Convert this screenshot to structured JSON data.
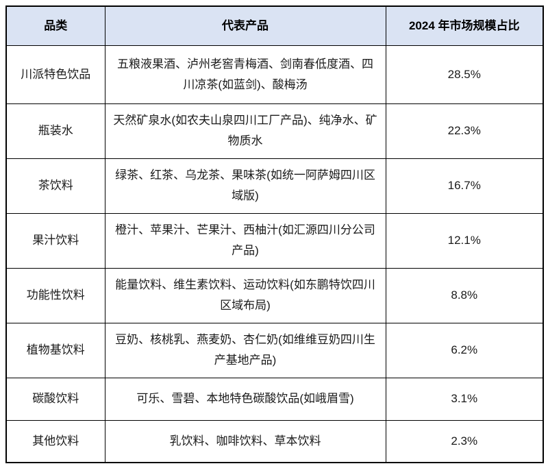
{
  "table": {
    "headers": {
      "category": "品类",
      "products": "代表产品",
      "share": "2024 年市场规模占比"
    },
    "rows": [
      {
        "category": "川派特色饮品",
        "products": "五粮液果酒、泸州老窖青梅酒、剑南春低度酒、四川凉茶(如蓝剑)、酸梅汤",
        "share": "28.5%"
      },
      {
        "category": "瓶装水",
        "products": "天然矿泉水(如农夫山泉四川工厂产品)、纯净水、矿物质水",
        "share": "22.3%"
      },
      {
        "category": "茶饮料",
        "products": "绿茶、红茶、乌龙茶、果味茶(如统一阿萨姆四川区域版)",
        "share": "16.7%"
      },
      {
        "category": "果汁饮料",
        "products": "橙汁、苹果汁、芒果汁、西柚汁(如汇源四川分公司产品)",
        "share": "12.1%"
      },
      {
        "category": "功能性饮料",
        "products": "能量饮料、维生素饮料、运动饮料(如东鹏特饮四川区域布局)",
        "share": "8.8%"
      },
      {
        "category": "植物基饮料",
        "products": "豆奶、核桃乳、燕麦奶、杏仁奶(如维维豆奶四川生产基地产品)",
        "share": "6.2%"
      },
      {
        "category": "碳酸饮料",
        "products": "可乐、雪碧、本地特色碳酸饮品(如峨眉雪)",
        "share": "3.1%"
      },
      {
        "category": "其他饮料",
        "products": "乳饮料、咖啡饮料、草本饮料",
        "share": "2.3%"
      }
    ]
  },
  "colors": {
    "header_background": "#dae3f3",
    "border": "#000000",
    "text": "#1a1a1a"
  }
}
